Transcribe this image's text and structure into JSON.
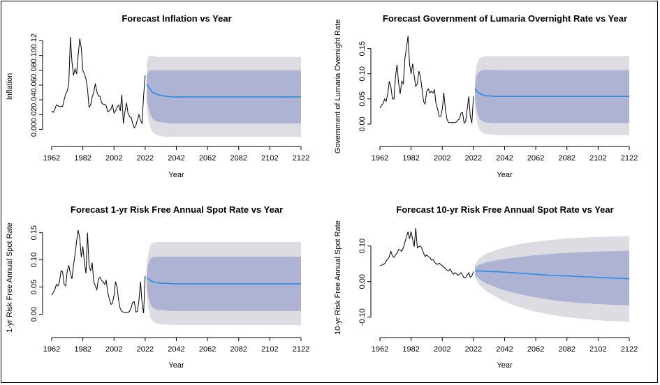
{
  "chart_data": [
    {
      "type": "line",
      "title": "Forecast Inflation vs Year",
      "xlabel": "Year",
      "ylabel": "Inflation",
      "xlim": [
        1962,
        2122
      ],
      "ylim": [
        -0.01,
        0.13
      ],
      "xticks": [
        "1962",
        "1982",
        "2002",
        "2022",
        "2042",
        "2062",
        "2082",
        "2102",
        "2122"
      ],
      "yticks": [
        "0.00",
        "0.02",
        "0.04",
        "0.06",
        "0.08",
        "0.10",
        "0.12"
      ],
      "colors": {
        "history": "#000000",
        "forecast": "#2b8ce6",
        "band80": "#aeb2d3",
        "band95": "#dcdce2"
      },
      "history": {
        "x": [
          1962,
          1963,
          1964,
          1965,
          1966,
          1967,
          1968,
          1969,
          1970,
          1971,
          1972,
          1973,
          1974,
          1975,
          1976,
          1977,
          1978,
          1979,
          1980,
          1981,
          1982,
          1983,
          1984,
          1985,
          1986,
          1987,
          1988,
          1989,
          1990,
          1991,
          1992,
          1993,
          1994,
          1995,
          1996,
          1997,
          1998,
          1999,
          2000,
          2001,
          2002,
          2003,
          2004,
          2005,
          2006,
          2007,
          2008,
          2009,
          2010,
          2011,
          2012,
          2013,
          2014,
          2015,
          2016,
          2017,
          2018,
          2019,
          2020,
          2021,
          2022
        ],
        "y": [
          0.025,
          0.023,
          0.027,
          0.033,
          0.032,
          0.031,
          0.031,
          0.031,
          0.04,
          0.048,
          0.052,
          0.062,
          0.125,
          0.092,
          0.073,
          0.082,
          0.075,
          0.1,
          0.123,
          0.11,
          0.08,
          0.075,
          0.068,
          0.055,
          0.03,
          0.033,
          0.044,
          0.05,
          0.062,
          0.051,
          0.045,
          0.045,
          0.036,
          0.034,
          0.034,
          0.032,
          0.024,
          0.025,
          0.027,
          0.034,
          0.022,
          0.025,
          0.03,
          0.033,
          0.025,
          0.047,
          0.008,
          0.024,
          0.036,
          0.022,
          0.017,
          0.016,
          0.008,
          0.002,
          0.005,
          0.013,
          0.02,
          0.012,
          0.008,
          0.045,
          0.073
        ]
      },
      "forecast": {
        "x": [
          2023,
          2024,
          2025,
          2026,
          2027,
          2028,
          2029,
          2030,
          2032,
          2035,
          2040,
          2050,
          2060,
          2080,
          2100,
          2122
        ],
        "y": [
          0.062,
          0.058,
          0.055,
          0.052,
          0.05,
          0.049,
          0.048,
          0.047,
          0.046,
          0.045,
          0.044,
          0.044,
          0.044,
          0.044,
          0.044,
          0.044
        ]
      },
      "band80": {
        "x": [
          2023,
          2024,
          2025,
          2026,
          2028,
          2030,
          2035,
          2040,
          2122
        ],
        "lower": [
          0.042,
          0.03,
          0.022,
          0.017,
          0.012,
          0.01,
          0.009,
          0.008,
          0.008
        ],
        "upper": [
          0.072,
          0.078,
          0.08,
          0.08,
          0.08,
          0.08,
          0.08,
          0.08,
          0.08
        ]
      },
      "band95": {
        "x": [
          2023,
          2024,
          2025,
          2026,
          2028,
          2030,
          2035,
          2040,
          2122
        ],
        "lower": [
          0.03,
          0.015,
          0.005,
          -0.001,
          -0.006,
          -0.008,
          -0.01,
          -0.01,
          -0.01
        ],
        "upper": [
          0.09,
          0.098,
          0.1,
          0.1,
          0.099,
          0.098,
          0.098,
          0.098,
          0.098
        ]
      }
    },
    {
      "type": "line",
      "title": "Forecast Government of Lumaria Overnight Rate vs Year",
      "xlabel": "Year",
      "ylabel": "Government of Lumaria Overnight Rate",
      "xlim": [
        1962,
        2122
      ],
      "ylim": [
        -0.025,
        0.18
      ],
      "xticks": [
        "1962",
        "1982",
        "2002",
        "2022",
        "2042",
        "2062",
        "2082",
        "2102",
        "2122"
      ],
      "yticks": [
        "0.00",
        "0.05",
        "0.10",
        "0.15"
      ],
      "colors": {
        "history": "#000000",
        "forecast": "#2b8ce6",
        "band80": "#aeb2d3",
        "band95": "#dcdce2"
      },
      "history": {
        "x": [
          1962,
          1963,
          1964,
          1965,
          1966,
          1967,
          1968,
          1969,
          1970,
          1971,
          1972,
          1973,
          1974,
          1975,
          1976,
          1977,
          1978,
          1979,
          1980,
          1981,
          1982,
          1983,
          1984,
          1985,
          1986,
          1987,
          1988,
          1989,
          1990,
          1991,
          1992,
          1993,
          1994,
          1995,
          1996,
          1997,
          1998,
          1999,
          2000,
          2001,
          2002,
          2003,
          2004,
          2005,
          2006,
          2007,
          2008,
          2009,
          2010,
          2011,
          2012,
          2013,
          2014,
          2015,
          2016,
          2017,
          2018,
          2019,
          2020,
          2021,
          2022
        ],
        "y": [
          0.032,
          0.037,
          0.041,
          0.05,
          0.045,
          0.06,
          0.085,
          0.075,
          0.05,
          0.05,
          0.095,
          0.118,
          0.08,
          0.06,
          0.085,
          0.08,
          0.13,
          0.15,
          0.175,
          0.12,
          0.1,
          0.12,
          0.095,
          0.075,
          0.08,
          0.105,
          0.095,
          0.07,
          0.045,
          0.04,
          0.065,
          0.07,
          0.062,
          0.065,
          0.062,
          0.068,
          0.04,
          0.03,
          0.015,
          0.015,
          0.03,
          0.062,
          0.03,
          0.01,
          0.003,
          0.003,
          0.003,
          0.003,
          0.003,
          0.004,
          0.008,
          0.01,
          0.022,
          0.023,
          0.002,
          0.005,
          0.03,
          0.055,
          0.015,
          0.002,
          0.055
        ]
      },
      "forecast": {
        "x": [
          2023,
          2024,
          2025,
          2026,
          2027,
          2028,
          2029,
          2030,
          2032,
          2035,
          2040,
          2060,
          2100,
          2122
        ],
        "y": [
          0.07,
          0.066,
          0.063,
          0.061,
          0.059,
          0.058,
          0.057,
          0.056,
          0.056,
          0.055,
          0.055,
          0.055,
          0.055,
          0.055
        ]
      },
      "band80": {
        "x": [
          2023,
          2024,
          2025,
          2026,
          2028,
          2030,
          2035,
          2040,
          2122
        ],
        "lower": [
          0.048,
          0.03,
          0.018,
          0.01,
          0.005,
          0.003,
          0.002,
          0.002,
          0.002
        ],
        "upper": [
          0.08,
          0.095,
          0.102,
          0.105,
          0.107,
          0.108,
          0.108,
          0.107,
          0.107
        ]
      },
      "band95": {
        "x": [
          2023,
          2024,
          2025,
          2026,
          2028,
          2030,
          2035,
          2040,
          2122
        ],
        "lower": [
          0.035,
          0.008,
          -0.005,
          -0.012,
          -0.018,
          -0.02,
          -0.021,
          -0.022,
          -0.022
        ],
        "upper": [
          0.095,
          0.115,
          0.126,
          0.131,
          0.134,
          0.135,
          0.135,
          0.135,
          0.135
        ]
      }
    },
    {
      "type": "line",
      "title": "Forecast 1-yr Risk Free Annual Spot Rate vs Year",
      "xlabel": "Year",
      "ylabel": "1-yr Risk Free Annual Spot Rate",
      "xlim": [
        1962,
        2122
      ],
      "ylim": [
        -0.025,
        0.165
      ],
      "xticks": [
        "1962",
        "1982",
        "2002",
        "2022",
        "2042",
        "2062",
        "2082",
        "2102",
        "2122"
      ],
      "yticks": [
        "0.00",
        "0.05",
        "0.10",
        "0.15"
      ],
      "colors": {
        "history": "#000000",
        "forecast": "#2b8ce6",
        "band80": "#aeb2d3",
        "band95": "#dcdce2"
      },
      "history": {
        "x": [
          1962,
          1963,
          1964,
          1965,
          1966,
          1967,
          1968,
          1969,
          1970,
          1971,
          1972,
          1973,
          1974,
          1975,
          1976,
          1977,
          1978,
          1979,
          1980,
          1981,
          1982,
          1983,
          1984,
          1985,
          1986,
          1987,
          1988,
          1989,
          1990,
          1991,
          1992,
          1993,
          1994,
          1995,
          1996,
          1997,
          1998,
          1999,
          2000,
          2001,
          2002,
          2003,
          2004,
          2005,
          2006,
          2007,
          2008,
          2009,
          2010,
          2011,
          2012,
          2013,
          2014,
          2015,
          2016,
          2017,
          2018,
          2019,
          2020,
          2021,
          2022
        ],
        "y": [
          0.035,
          0.04,
          0.045,
          0.055,
          0.052,
          0.06,
          0.08,
          0.078,
          0.055,
          0.052,
          0.08,
          0.09,
          0.075,
          0.065,
          0.09,
          0.11,
          0.135,
          0.155,
          0.14,
          0.105,
          0.125,
          0.095,
          0.075,
          0.15,
          0.09,
          0.08,
          0.095,
          0.06,
          0.052,
          0.045,
          0.065,
          0.068,
          0.062,
          0.06,
          0.055,
          0.062,
          0.04,
          0.028,
          0.018,
          0.02,
          0.035,
          0.06,
          0.05,
          0.025,
          0.01,
          0.005,
          0.004,
          0.003,
          0.003,
          0.003,
          0.006,
          0.012,
          0.022,
          0.023,
          0.004,
          0.005,
          0.025,
          0.06,
          0.02,
          0.002,
          0.07
        ]
      },
      "forecast": {
        "x": [
          2023,
          2024,
          2025,
          2026,
          2027,
          2028,
          2029,
          2030,
          2032,
          2035,
          2040,
          2060,
          2100,
          2122
        ],
        "y": [
          0.068,
          0.065,
          0.063,
          0.061,
          0.06,
          0.059,
          0.058,
          0.058,
          0.057,
          0.057,
          0.056,
          0.056,
          0.056,
          0.056
        ]
      },
      "band80": {
        "x": [
          2023,
          2024,
          2025,
          2026,
          2028,
          2030,
          2035,
          2040,
          2122
        ],
        "lower": [
          0.05,
          0.033,
          0.022,
          0.015,
          0.01,
          0.008,
          0.007,
          0.006,
          0.006
        ],
        "upper": [
          0.078,
          0.092,
          0.1,
          0.104,
          0.106,
          0.106,
          0.106,
          0.106,
          0.106
        ]
      },
      "band95": {
        "x": [
          2023,
          2024,
          2025,
          2026,
          2028,
          2030,
          2035,
          2040,
          2122
        ],
        "lower": [
          0.038,
          0.012,
          -0.002,
          -0.01,
          -0.016,
          -0.018,
          -0.019,
          -0.02,
          -0.02
        ],
        "upper": [
          0.092,
          0.112,
          0.124,
          0.13,
          0.132,
          0.133,
          0.133,
          0.133,
          0.133
        ]
      }
    },
    {
      "type": "line",
      "title": "Forecast 10-yr Risk Free Annual Spot Rate vs Year",
      "xlabel": "Year",
      "ylabel": "10-yr Risk Free Annual Spot Rate",
      "xlim": [
        1962,
        2122
      ],
      "ylim": [
        -0.13,
        0.16
      ],
      "xticks": [
        "1962",
        "1982",
        "2002",
        "2022",
        "2042",
        "2062",
        "2082",
        "2102",
        "2122"
      ],
      "yticks": [
        "-0.10",
        "0.00",
        "0.10"
      ],
      "colors": {
        "history": "#000000",
        "forecast": "#2b8ce6",
        "band80": "#aeb2d3",
        "band95": "#dcdce2"
      },
      "history": {
        "x": [
          1962,
          1963,
          1964,
          1965,
          1966,
          1967,
          1968,
          1969,
          1970,
          1971,
          1972,
          1973,
          1974,
          1975,
          1976,
          1977,
          1978,
          1979,
          1980,
          1981,
          1982,
          1983,
          1984,
          1985,
          1986,
          1987,
          1988,
          1989,
          1990,
          1991,
          1992,
          1993,
          1994,
          1995,
          1996,
          1997,
          1998,
          1999,
          2000,
          2001,
          2002,
          2003,
          2004,
          2005,
          2006,
          2007,
          2008,
          2009,
          2010,
          2011,
          2012,
          2013,
          2014,
          2015,
          2016,
          2017,
          2018,
          2019,
          2020,
          2021,
          2022
        ],
        "y": [
          0.045,
          0.046,
          0.048,
          0.05,
          0.058,
          0.062,
          0.07,
          0.085,
          0.072,
          0.068,
          0.075,
          0.08,
          0.09,
          0.088,
          0.085,
          0.095,
          0.11,
          0.125,
          0.14,
          0.12,
          0.14,
          0.118,
          0.098,
          0.15,
          0.095,
          0.098,
          0.1,
          0.092,
          0.08,
          0.07,
          0.075,
          0.07,
          0.068,
          0.06,
          0.062,
          0.055,
          0.05,
          0.048,
          0.052,
          0.048,
          0.045,
          0.04,
          0.038,
          0.032,
          0.03,
          0.035,
          0.028,
          0.02,
          0.025,
          0.022,
          0.018,
          0.02,
          0.025,
          0.018,
          0.01,
          0.012,
          0.018,
          0.025,
          0.012,
          0.016,
          0.028
        ]
      },
      "forecast": {
        "x": [
          2023,
          2030,
          2040,
          2050,
          2060,
          2070,
          2080,
          2090,
          2100,
          2110,
          2122
        ],
        "y": [
          0.03,
          0.029,
          0.027,
          0.024,
          0.021,
          0.018,
          0.016,
          0.014,
          0.012,
          0.01,
          0.008
        ]
      },
      "band80": {
        "x": [
          2023,
          2026,
          2030,
          2040,
          2050,
          2060,
          2070,
          2080,
          2090,
          2100,
          2110,
          2122
        ],
        "lower": [
          0.018,
          0.006,
          -0.005,
          -0.022,
          -0.034,
          -0.043,
          -0.05,
          -0.056,
          -0.06,
          -0.063,
          -0.065,
          -0.067
        ],
        "upper": [
          0.04,
          0.048,
          0.054,
          0.062,
          0.068,
          0.073,
          0.077,
          0.08,
          0.082,
          0.084,
          0.085,
          0.086
        ]
      },
      "band95": {
        "x": [
          2023,
          2026,
          2030,
          2040,
          2050,
          2060,
          2070,
          2080,
          2090,
          2100,
          2110,
          2122
        ],
        "lower": [
          0.01,
          -0.01,
          -0.026,
          -0.052,
          -0.07,
          -0.083,
          -0.092,
          -0.099,
          -0.104,
          -0.108,
          -0.111,
          -0.113
        ],
        "upper": [
          0.048,
          0.066,
          0.078,
          0.094,
          0.104,
          0.111,
          0.116,
          0.12,
          0.123,
          0.125,
          0.126,
          0.127
        ]
      }
    }
  ]
}
